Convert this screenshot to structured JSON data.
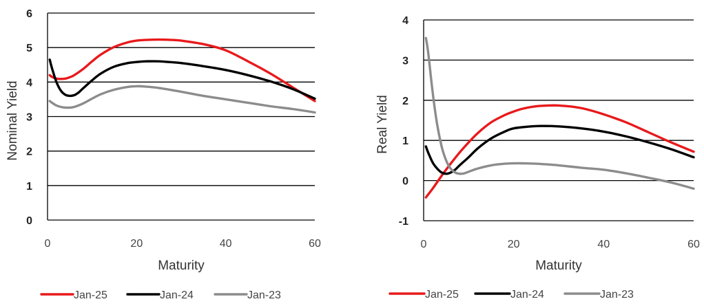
{
  "chart_data": [
    {
      "type": "line",
      "ylabel": "Nominal Yield",
      "xlabel": "Maturity",
      "xlim": [
        0,
        60
      ],
      "ylim": [
        0,
        6
      ],
      "xticks": [
        0,
        20,
        40,
        60
      ],
      "yticks": [
        0,
        1,
        2,
        3,
        4,
        5,
        6
      ],
      "grid": true,
      "legend_position": "bottom",
      "series": [
        {
          "name": "Jan-25",
          "color": "#e8191b",
          "x": [
            0.5,
            1,
            2,
            3,
            4,
            5,
            6,
            8,
            10,
            12,
            15,
            18,
            20,
            22,
            25,
            28,
            30,
            35,
            40,
            45,
            50,
            55,
            60
          ],
          "y": [
            4.2,
            4.15,
            4.1,
            4.09,
            4.1,
            4.14,
            4.2,
            4.38,
            4.6,
            4.8,
            5.02,
            5.15,
            5.2,
            5.22,
            5.23,
            5.22,
            5.2,
            5.1,
            4.92,
            4.6,
            4.25,
            3.85,
            3.45
          ]
        },
        {
          "name": "Jan-24",
          "color": "#000000",
          "x": [
            0.5,
            1,
            2,
            3,
            4,
            5,
            6,
            7,
            8,
            10,
            12,
            15,
            18,
            20,
            22,
            25,
            30,
            35,
            40,
            45,
            50,
            55,
            60
          ],
          "y": [
            4.65,
            4.4,
            4.0,
            3.75,
            3.63,
            3.6,
            3.62,
            3.7,
            3.82,
            4.05,
            4.25,
            4.45,
            4.55,
            4.58,
            4.6,
            4.6,
            4.55,
            4.46,
            4.35,
            4.2,
            4.02,
            3.8,
            3.52
          ]
        },
        {
          "name": "Jan-23",
          "color": "#8c8c8c",
          "x": [
            0.5,
            1,
            2,
            3,
            4,
            5,
            6,
            8,
            10,
            12,
            15,
            18,
            20,
            22,
            25,
            30,
            35,
            40,
            45,
            50,
            55,
            60
          ],
          "y": [
            3.45,
            3.4,
            3.32,
            3.28,
            3.26,
            3.26,
            3.28,
            3.38,
            3.52,
            3.65,
            3.78,
            3.86,
            3.88,
            3.87,
            3.83,
            3.72,
            3.6,
            3.5,
            3.4,
            3.3,
            3.22,
            3.12
          ]
        }
      ]
    },
    {
      "type": "line",
      "ylabel": "Real Yield",
      "xlabel": "Maturity",
      "xlim": [
        0,
        60
      ],
      "ylim": [
        -1,
        4
      ],
      "xticks": [
        0,
        20,
        40,
        60
      ],
      "yticks": [
        -1,
        0,
        1,
        2,
        3,
        4
      ],
      "grid": true,
      "legend_position": "bottom",
      "series": [
        {
          "name": "Jan-25",
          "color": "#e8191b",
          "x": [
            0.5,
            2,
            4,
            6,
            8,
            10,
            12,
            15,
            18,
            20,
            22,
            25,
            28,
            30,
            33,
            36,
            40,
            45,
            50,
            55,
            60
          ],
          "y": [
            -0.42,
            -0.2,
            0.12,
            0.42,
            0.7,
            0.95,
            1.18,
            1.45,
            1.63,
            1.72,
            1.79,
            1.85,
            1.87,
            1.87,
            1.84,
            1.78,
            1.65,
            1.45,
            1.2,
            0.95,
            0.72
          ]
        },
        {
          "name": "Jan-24",
          "color": "#000000",
          "x": [
            0.5,
            1,
            2,
            3,
            4,
            5,
            6,
            7,
            8,
            10,
            12,
            15,
            18,
            20,
            23,
            26,
            30,
            35,
            40,
            45,
            50,
            55,
            60
          ],
          "y": [
            0.85,
            0.7,
            0.45,
            0.3,
            0.2,
            0.17,
            0.2,
            0.27,
            0.38,
            0.58,
            0.8,
            1.05,
            1.22,
            1.3,
            1.34,
            1.36,
            1.35,
            1.3,
            1.22,
            1.1,
            0.95,
            0.78,
            0.58
          ]
        },
        {
          "name": "Jan-23",
          "color": "#8c8c8c",
          "x": [
            0.5,
            1,
            2,
            3,
            4,
            5,
            6,
            7,
            8,
            9,
            10,
            12,
            15,
            18,
            20,
            22,
            25,
            30,
            35,
            40,
            45,
            50,
            55,
            60
          ],
          "y": [
            3.55,
            3.2,
            2.2,
            1.4,
            0.85,
            0.5,
            0.3,
            0.2,
            0.17,
            0.18,
            0.22,
            0.3,
            0.38,
            0.42,
            0.43,
            0.43,
            0.42,
            0.38,
            0.32,
            0.27,
            0.18,
            0.07,
            -0.05,
            -0.2
          ]
        }
      ]
    }
  ]
}
